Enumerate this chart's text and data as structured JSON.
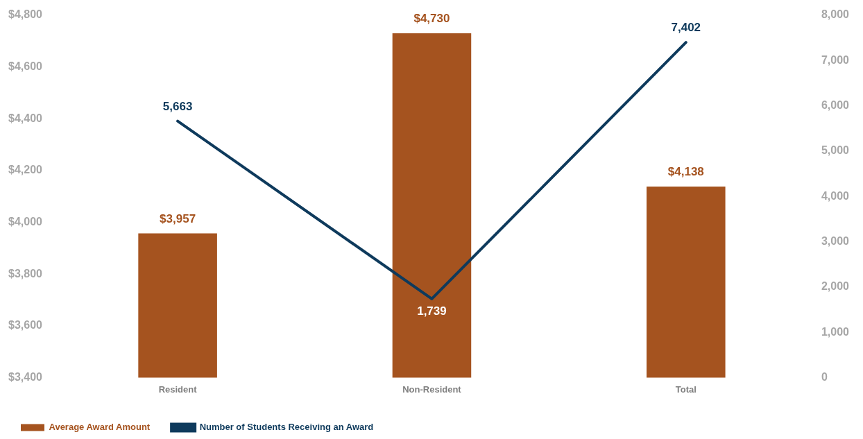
{
  "chart_data": {
    "type": "bar",
    "categories": [
      "Resident",
      "Non-Resident",
      "Total"
    ],
    "series": [
      {
        "name": "Average Award Amount",
        "color": "#a5531f",
        "values": [
          3957,
          4730,
          4138
        ],
        "value_labels": [
          "$3,957",
          "$4,730",
          "$4,138"
        ]
      },
      {
        "name": "Number of Students Receiving an Award",
        "type": "line",
        "axis": "y2",
        "color": "#0e3a5c",
        "values": [
          5663,
          1739,
          7402
        ],
        "value_labels": [
          "5,663",
          "1,739",
          "7,402"
        ]
      }
    ],
    "ylim": [
      3400,
      4800
    ],
    "yticks": [
      {
        "value": 3400,
        "label": "$3,400"
      },
      {
        "value": 3600,
        "label": "$3,600"
      },
      {
        "value": 3800,
        "label": "$3,800"
      },
      {
        "value": 4000,
        "label": "$4,000"
      },
      {
        "value": 4200,
        "label": "$4,200"
      },
      {
        "value": 4400,
        "label": "$4,400"
      },
      {
        "value": 4600,
        "label": "$4,600"
      },
      {
        "value": 4800,
        "label": "$4,800"
      }
    ],
    "y2lim": [
      0,
      8000
    ],
    "y2ticks": [
      0,
      {
        "value": 1000,
        "label": "1,000"
      },
      {
        "value": 2000,
        "label": "2,000"
      },
      {
        "value": 3000,
        "label": "3,000"
      },
      {
        "value": 4000,
        "label": "4,000"
      },
      {
        "value": 5000,
        "label": "5,000"
      },
      {
        "value": 6000,
        "label": "6,000"
      },
      {
        "value": 7000,
        "label": "7,000"
      },
      {
        "value": 8000,
        "label": "8,000"
      }
    ],
    "grid": false,
    "legend": "bottom",
    "marker": "none",
    "line_style": "solid"
  }
}
